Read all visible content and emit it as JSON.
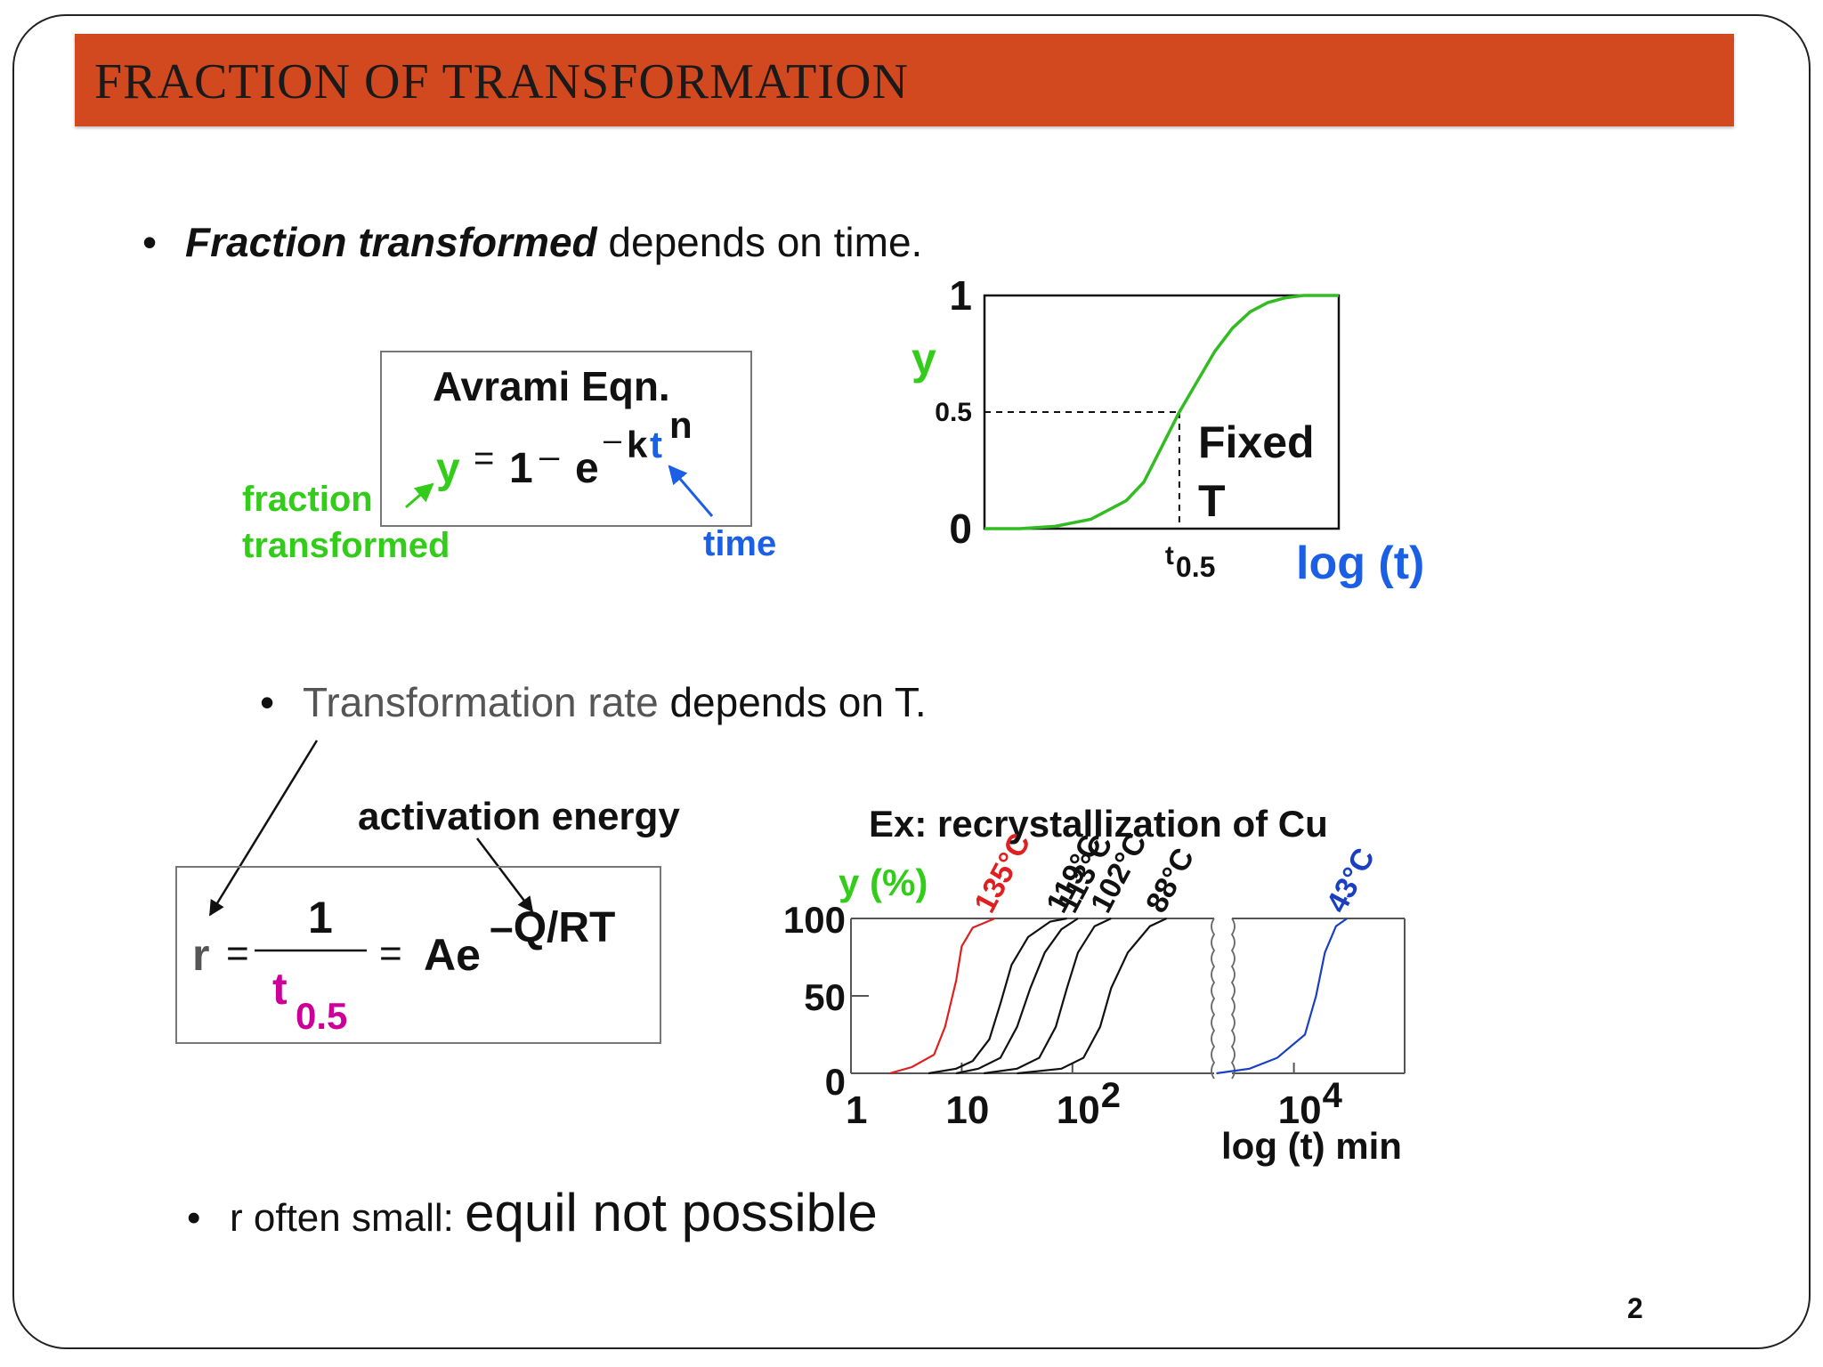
{
  "slide": {
    "title": "FRACTION OF TRANSFORMATION",
    "page_number": "2"
  },
  "bullets": {
    "b1_bullet": "•",
    "b1_em": "Fraction transformed",
    "b1_rest": " depends on time.",
    "b2_bullet": "•",
    "b2_gray": "Transformation rate",
    "b2_rest": " depends on T.",
    "b3_bullet": "•",
    "b3_small": "r often small: ",
    "b3_large": "equil not possible"
  },
  "avrami": {
    "box_title": "Avrami Eqn.",
    "y": "y",
    "equals": "=",
    "one": "1",
    "minus": "–",
    "e": "e",
    "exp_minus": "–",
    "k": "k",
    "t": "t",
    "n": "n",
    "label_fraction_1": "fraction",
    "label_fraction_2": "transformed",
    "label_time": "time",
    "colors": {
      "green": "#33cc1a",
      "blue": "#1a5fe6"
    }
  },
  "rate_eq": {
    "activation_label": "activation energy",
    "r": "r",
    "equals1": "=",
    "numerator": "1",
    "t_base": "t",
    "t_sub": "0.5",
    "equals2": "=",
    "Ae": "Ae",
    "exp": "–Q/RT",
    "colors": {
      "gray": "#555555",
      "magenta": "#cc0099"
    }
  },
  "chart_data": [
    {
      "type": "line",
      "title": "",
      "xlabel": "log (t)",
      "ylabel": "y",
      "y_ticks": [
        "0",
        "0.5",
        "1"
      ],
      "ylim": [
        0,
        1
      ],
      "x_marker_label_base": "t",
      "x_marker_label_sub": "0.5",
      "annotation_1": "Fixed",
      "annotation_2": "T",
      "series": [
        {
          "color": "#33bb22",
          "points": [
            [
              0.0,
              0.0
            ],
            [
              0.1,
              0.0
            ],
            [
              0.2,
              0.01
            ],
            [
              0.3,
              0.04
            ],
            [
              0.4,
              0.12
            ],
            [
              0.45,
              0.2
            ],
            [
              0.5,
              0.35
            ],
            [
              0.55,
              0.5
            ],
            [
              0.6,
              0.63
            ],
            [
              0.65,
              0.76
            ],
            [
              0.7,
              0.86
            ],
            [
              0.75,
              0.93
            ],
            [
              0.8,
              0.97
            ],
            [
              0.85,
              0.99
            ],
            [
              0.9,
              1.0
            ],
            [
              1.0,
              1.0
            ]
          ]
        }
      ]
    },
    {
      "type": "line",
      "title": "Ex: recrystallization of Cu",
      "xlabel": "log (t) min",
      "ylabel": "y (%)",
      "y_ticks": [
        "0",
        "50",
        "100"
      ],
      "ylim": [
        0,
        100
      ],
      "x_ticks": [
        {
          "base": "1",
          "exp": ""
        },
        {
          "base": "10",
          "exp": ""
        },
        {
          "base": "10",
          "exp": "2"
        },
        {
          "base": "10",
          "exp": "4"
        }
      ],
      "xlog_range": [
        0,
        5
      ],
      "series": [
        {
          "name": "135°C",
          "color": "#e02020",
          "points": [
            [
              0.35,
              0
            ],
            [
              0.55,
              4
            ],
            [
              0.75,
              12
            ],
            [
              0.85,
              30
            ],
            [
              0.95,
              60
            ],
            [
              1.0,
              82
            ],
            [
              1.1,
              94
            ],
            [
              1.3,
              100
            ]
          ]
        },
        {
          "name": "119°C",
          "color": "#111111",
          "points": [
            [
              0.7,
              0
            ],
            [
              0.95,
              3
            ],
            [
              1.1,
              8
            ],
            [
              1.25,
              22
            ],
            [
              1.35,
              45
            ],
            [
              1.45,
              70
            ],
            [
              1.6,
              88
            ],
            [
              1.8,
              98
            ],
            [
              1.95,
              100
            ]
          ]
        },
        {
          "name": "113°C",
          "color": "#111111",
          "points": [
            [
              0.95,
              0
            ],
            [
              1.15,
              3
            ],
            [
              1.35,
              10
            ],
            [
              1.5,
              30
            ],
            [
              1.62,
              55
            ],
            [
              1.75,
              78
            ],
            [
              1.9,
              93
            ],
            [
              2.05,
              100
            ]
          ]
        },
        {
          "name": "102°C",
          "color": "#111111",
          "points": [
            [
              1.2,
              0
            ],
            [
              1.5,
              3
            ],
            [
              1.7,
              10
            ],
            [
              1.85,
              30
            ],
            [
              1.95,
              55
            ],
            [
              2.05,
              78
            ],
            [
              2.2,
              95
            ],
            [
              2.35,
              100
            ]
          ]
        },
        {
          "name": "88°C",
          "color": "#111111",
          "points": [
            [
              1.5,
              0
            ],
            [
              1.9,
              3
            ],
            [
              2.1,
              10
            ],
            [
              2.25,
              30
            ],
            [
              2.35,
              55
            ],
            [
              2.5,
              78
            ],
            [
              2.7,
              95
            ],
            [
              2.85,
              100
            ]
          ]
        },
        {
          "name": "43°C",
          "color": "#1a3fc0",
          "points": [
            [
              3.3,
              0
            ],
            [
              3.6,
              3
            ],
            [
              3.85,
              10
            ],
            [
              4.1,
              25
            ],
            [
              4.2,
              50
            ],
            [
              4.28,
              78
            ],
            [
              4.38,
              95
            ],
            [
              4.48,
              100
            ]
          ]
        }
      ]
    }
  ]
}
